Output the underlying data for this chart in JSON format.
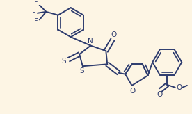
{
  "bg_color": "#fdf5e4",
  "line_color": "#2d3b6e",
  "line_width": 1.4,
  "figsize": [
    2.76,
    1.64
  ],
  "dpi": 100,
  "xlim": [
    0,
    276
  ],
  "ylim": [
    0,
    164
  ]
}
